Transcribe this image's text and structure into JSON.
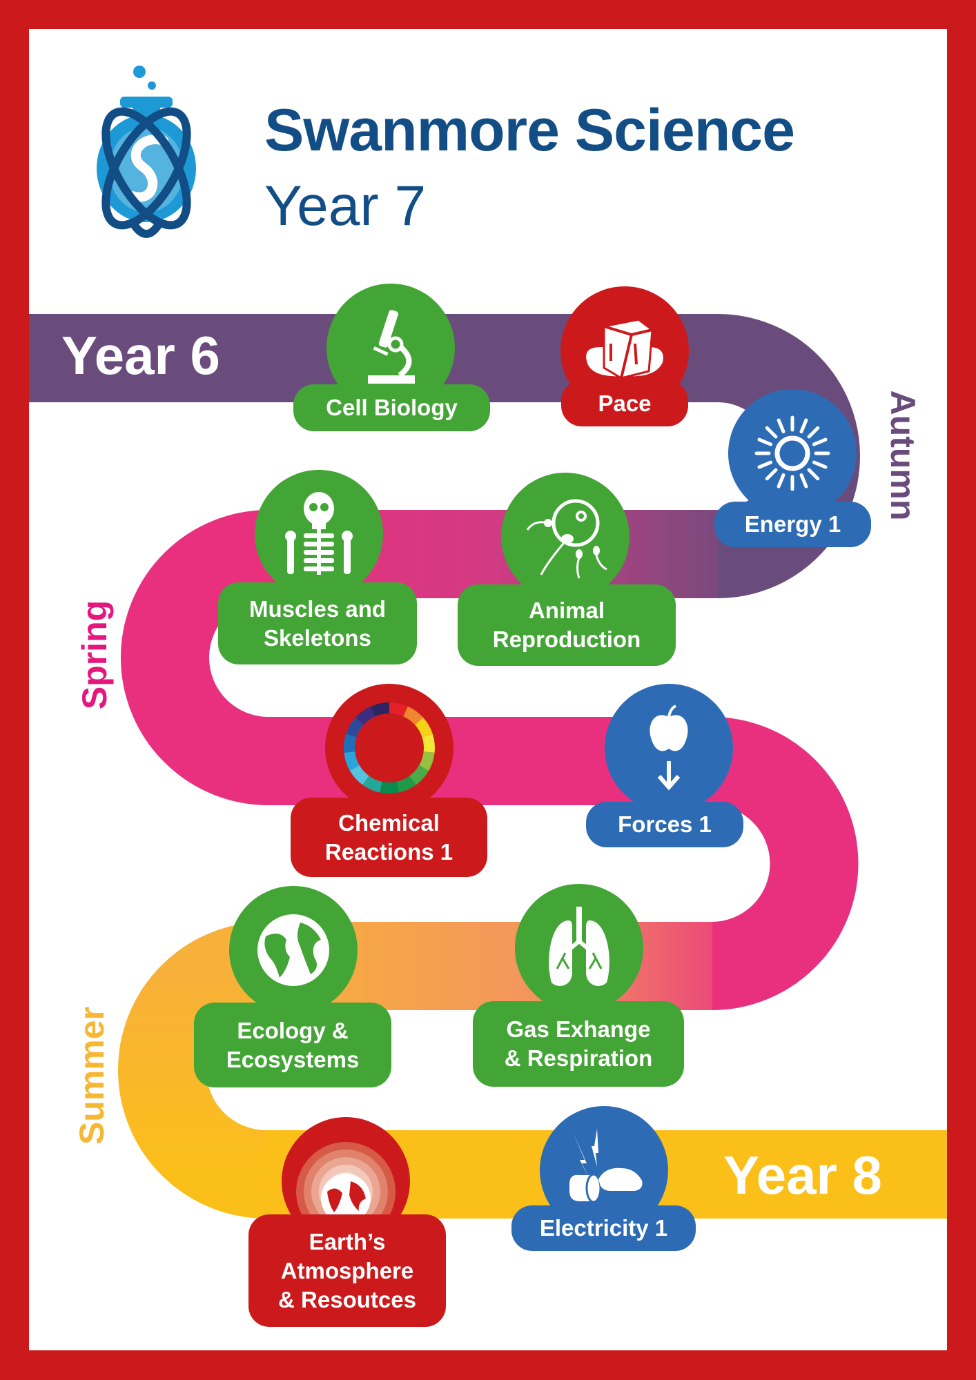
{
  "header": {
    "title": "Swanmore Science",
    "subtitle": "Year 7",
    "logo_icon": "flask-atom-swan-logo"
  },
  "road": {
    "start_label": "Year 6",
    "end_label": "Year 8",
    "colors": {
      "autumn": "#6a4c7c",
      "spring": "#e8307f",
      "summer_orange": "#f6a94a",
      "summer": "#fbbf1a"
    }
  },
  "seasons": [
    {
      "label": "Autumn",
      "color": "#6a4c7c"
    },
    {
      "label": "Spring",
      "color": "#e5177f"
    },
    {
      "label": "Summer",
      "color": "#f8b733"
    }
  ],
  "colors": {
    "green": "#43a535",
    "red": "#cc1a1c",
    "blue": "#2d6cb5",
    "navy": "#124e85"
  },
  "topics": [
    {
      "label": "Cell Biology",
      "color": "green",
      "icon": "microscope-icon"
    },
    {
      "label": "Pace",
      "color": "red",
      "icon": "ice-cube-icon"
    },
    {
      "label": "Energy 1",
      "color": "blue",
      "icon": "sun-icon"
    },
    {
      "label": "Muscles and\nSkeletons",
      "color": "green",
      "icon": "skeleton-icon"
    },
    {
      "label": "Animal\nReproduction",
      "color": "green",
      "icon": "egg-sperm-icon"
    },
    {
      "label": "Chemical\nReactions 1",
      "color": "red",
      "icon": "ph-scale-icon"
    },
    {
      "label": "Forces 1",
      "color": "blue",
      "icon": "falling-apple-icon"
    },
    {
      "label": "Ecology &\nEcosystems",
      "color": "green",
      "icon": "globe-icon"
    },
    {
      "label": "Gas Exhange\n& Respiration",
      "color": "green",
      "icon": "lungs-icon"
    },
    {
      "label": "Earth’s\nAtmosphere\n& Resoutces",
      "color": "red",
      "icon": "earth-atmosphere-icon"
    },
    {
      "label": "Electricity 1",
      "color": "blue",
      "icon": "electric-shock-hand-icon"
    }
  ]
}
